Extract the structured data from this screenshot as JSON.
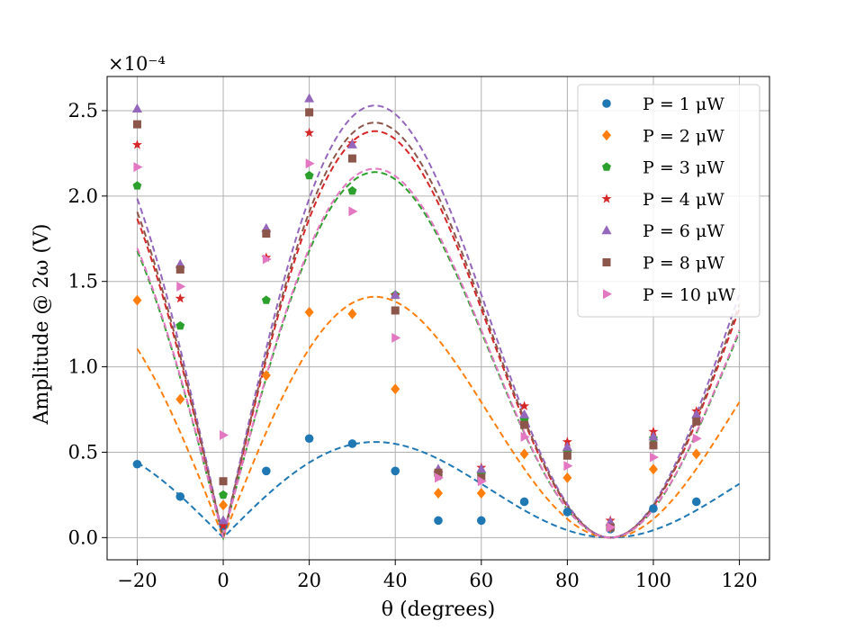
{
  "chart_data": {
    "type": "scatter",
    "title": "",
    "xlabel": "θ (degrees)",
    "ylabel": "Amplitude @ 2ω (V)",
    "y_scale_label": "×10⁻⁴",
    "xlim": [
      -27,
      127
    ],
    "ylim": [
      -0.13,
      2.7
    ],
    "xticks": [
      -20,
      0,
      20,
      40,
      60,
      80,
      100,
      120
    ],
    "xtick_labels": [
      "−20",
      "0",
      "20",
      "40",
      "60",
      "80",
      "100",
      "120"
    ],
    "yticks": [
      0.0,
      0.5,
      1.0,
      1.5,
      2.0,
      2.5
    ],
    "ytick_labels": [
      "0.0",
      "0.5",
      "1.0",
      "1.5",
      "2.0",
      "2.5"
    ],
    "grid": true,
    "legend_position": "top-right",
    "x": [
      -20,
      -10,
      0,
      10,
      20,
      30,
      40,
      50,
      60,
      70,
      80,
      90,
      100,
      110
    ],
    "fit": {
      "type": "abs_sin_2theta_times_cos_theta",
      "x_range": [
        -20,
        120
      ]
    },
    "series": [
      {
        "name": "P = 1 μW",
        "color": "#1f77b4",
        "marker": "circle",
        "values": [
          0.43,
          0.24,
          0.07,
          0.39,
          0.58,
          0.55,
          0.39,
          0.1,
          0.1,
          0.21,
          0.15,
          0.05,
          0.17,
          0.21
        ],
        "fit_amplitude": 0.56
      },
      {
        "name": "P = 2 μW",
        "color": "#ff7f0e",
        "marker": "diamond",
        "values": [
          1.39,
          0.81,
          0.19,
          0.95,
          1.32,
          1.31,
          0.87,
          0.26,
          0.26,
          0.49,
          0.35,
          0.06,
          0.4,
          0.49
        ],
        "fit_amplitude": 1.41
      },
      {
        "name": "P = 3 μW",
        "color": "#2ca02c",
        "marker": "pentagon",
        "values": [
          2.06,
          1.24,
          0.25,
          1.39,
          2.12,
          2.03,
          1.42,
          0.36,
          0.37,
          0.69,
          0.5,
          0.07,
          0.58,
          0.7
        ],
        "fit_amplitude": 2.14
      },
      {
        "name": "P = 4 μW",
        "color": "#d62728",
        "marker": "star",
        "values": [
          2.3,
          1.4,
          0.07,
          1.64,
          2.37,
          2.31,
          1.42,
          0.38,
          0.41,
          0.77,
          0.56,
          0.1,
          0.62,
          0.74
        ],
        "fit_amplitude": 2.38
      },
      {
        "name": "P = 6 μW",
        "color": "#9467bd",
        "marker": "triangle-up",
        "values": [
          2.51,
          1.6,
          0.1,
          1.81,
          2.57,
          2.3,
          1.42,
          0.4,
          0.4,
          0.72,
          0.53,
          0.09,
          0.59,
          0.72
        ],
        "fit_amplitude": 2.53
      },
      {
        "name": "P = 8 μW",
        "color": "#8c564b",
        "marker": "square",
        "values": [
          2.42,
          1.57,
          0.33,
          1.78,
          2.49,
          2.22,
          1.33,
          0.38,
          0.35,
          0.66,
          0.48,
          0.06,
          0.54,
          0.68
        ],
        "fit_amplitude": 2.43
      },
      {
        "name": "P = 10 μW",
        "color": "#e377c2",
        "marker": "triangle-right",
        "values": [
          2.17,
          1.47,
          0.6,
          1.63,
          2.19,
          1.91,
          1.17,
          0.35,
          0.33,
          0.59,
          0.42,
          0.06,
          0.47,
          0.58
        ],
        "fit_amplitude": 2.16
      }
    ]
  }
}
